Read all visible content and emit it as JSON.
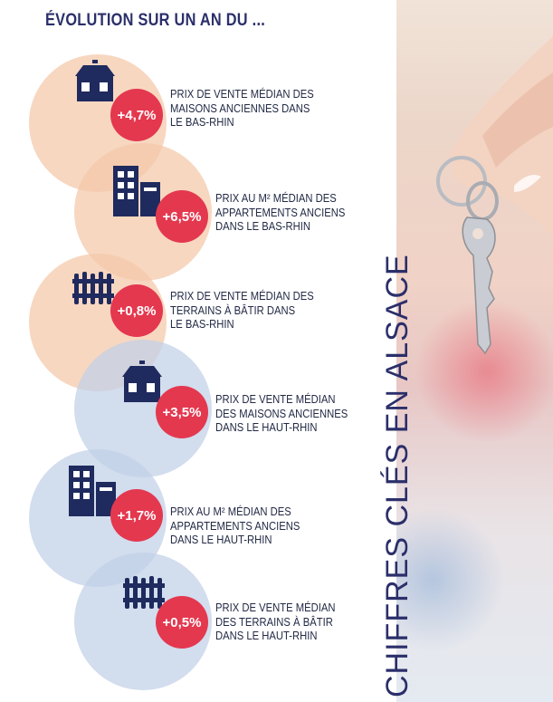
{
  "title": "ÉVOLUTION SUR UN AN DU ...",
  "side_title": "CHIFFRES CLÉS EN ALSACE",
  "colors": {
    "navy": "#1f2a5e",
    "red": "#e4384f",
    "orange_bubble": "#f4c7a8",
    "blue_bubble": "#c0d0e8"
  },
  "items": [
    {
      "icon": "house-icon",
      "value": "+4,7%",
      "lines": [
        "PRIX DE VENTE MÉDIAN DES",
        "MAISONS ANCIENNES DANS",
        "LE BAS-RHIN"
      ]
    },
    {
      "icon": "apartment-building-icon",
      "value": "+6,5%",
      "lines": [
        "PRIX AU M² MÉDIAN DES",
        "APPARTEMENTS ANCIENS",
        "DANS LE BAS-RHIN"
      ]
    },
    {
      "icon": "fence-icon",
      "value": "+0,8%",
      "lines": [
        "PRIX DE VENTE MÉDIAN DES",
        "TERRAINS À BÂTIR DANS",
        "LE BAS-RHIN"
      ]
    },
    {
      "icon": "house-icon",
      "value": "+3,5%",
      "lines": [
        "PRIX DE VENTE MÉDIAN",
        "DES MAISONS ANCIENNES",
        "DANS LE HAUT-RHIN"
      ]
    },
    {
      "icon": "apartment-building-icon",
      "value": "+1,7%",
      "lines": [
        "PRIX AU M² MÉDIAN DES",
        "APPARTEMENTS ANCIENS",
        "DANS LE HAUT-RHIN"
      ]
    },
    {
      "icon": "fence-icon",
      "value": "+0,5%",
      "lines": [
        "PRIX DE VENTE MÉDIAN",
        "DES TERRAINS À BÂTIR",
        "DANS LE HAUT-RHIN"
      ]
    }
  ]
}
